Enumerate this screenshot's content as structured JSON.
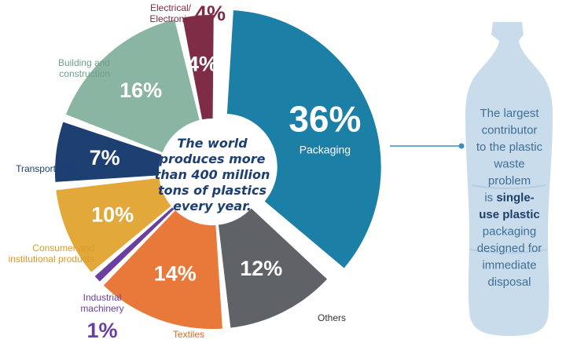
{
  "chart_data": {
    "type": "pie",
    "title": "",
    "slices": [
      {
        "label": "Packaging",
        "value": 36,
        "value_label": "36%",
        "color": "#1b7fa6"
      },
      {
        "label": "Others",
        "value": 12,
        "value_label": "12%",
        "color": "#5f6368"
      },
      {
        "label": "Textiles",
        "value": 14,
        "value_label": "14%",
        "color": "#e9793a"
      },
      {
        "label": "Industrial\nmachinery",
        "value": 1,
        "value_label": "1%",
        "color": "#6b3fa0"
      },
      {
        "label": "Consumer and\ninstitutional products",
        "value": 10,
        "value_label": "10%",
        "color": "#e3a83a"
      },
      {
        "label": "Transportation",
        "value": 7,
        "value_label": "7%",
        "color": "#1d3f72"
      },
      {
        "label": "Building and\nconstruction",
        "value": 16,
        "value_label": "16%",
        "color": "#8bb5a3"
      },
      {
        "label": "Electrical/\nElectronic",
        "value": 4,
        "value_label": "4%",
        "color": "#7f2d47"
      }
    ]
  },
  "center_text": [
    "The world",
    "produces more",
    "than 400 million",
    "tons of plastics",
    "every year."
  ],
  "bottle_text": {
    "lines": [
      [
        {
          "t": "The largest",
          "b": false
        }
      ],
      [
        {
          "t": "contributor",
          "b": false
        }
      ],
      [
        {
          "t": "to the plastic",
          "b": false
        }
      ],
      [
        {
          "t": "waste",
          "b": false
        }
      ],
      [
        {
          "t": "problem",
          "b": false
        }
      ],
      [
        {
          "t": "is ",
          "b": false
        },
        {
          "t": "single-",
          "b": true
        }
      ],
      [
        {
          "t": "use plastic",
          "b": true
        }
      ],
      [
        {
          "t": "packaging",
          "b": false
        }
      ],
      [
        {
          "t": "designed for",
          "b": false
        }
      ],
      [
        {
          "t": "immediate",
          "b": false
        }
      ],
      [
        {
          "t": "disposal",
          "b": false
        }
      ]
    ]
  },
  "colors": {
    "bottle_fill": "#c9dcec",
    "bottle_text": "#3e6f96",
    "bottle_bold": "#1e3f6a",
    "center_text": "#1d3f72",
    "connector": "#3a8fbf"
  }
}
